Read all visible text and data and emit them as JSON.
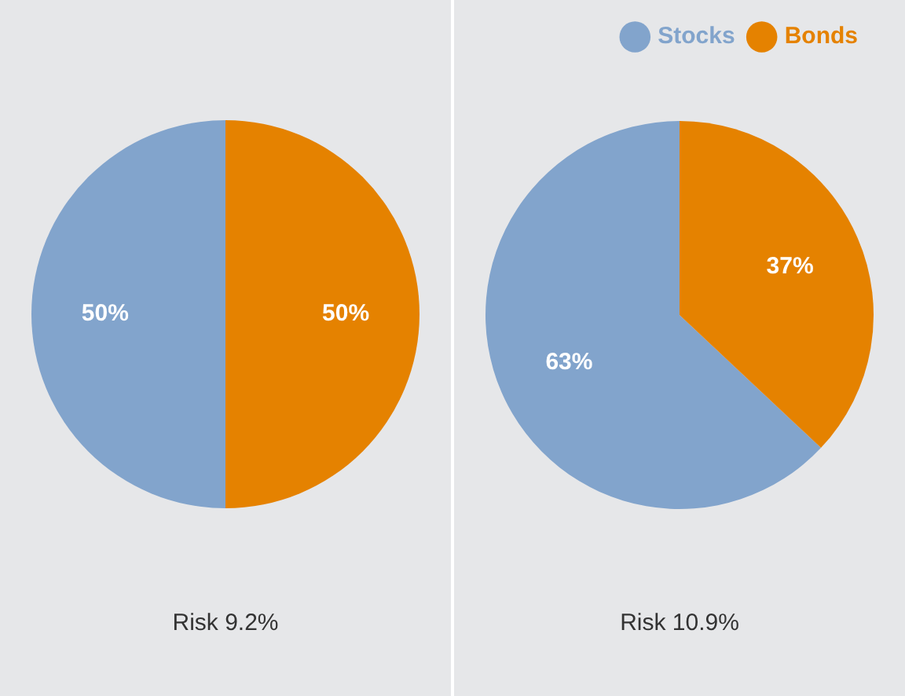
{
  "chart_data": [
    {
      "type": "pie",
      "categories": [
        null,
        null
      ],
      "values": [
        50,
        50
      ],
      "value_labels": [
        "50%",
        "50%"
      ],
      "colors": [
        "#82a4cc",
        "#e58200"
      ],
      "legend": false,
      "annotations": [
        "Risk 9.2%"
      ]
    },
    {
      "type": "pie",
      "categories": [
        "Stocks",
        "Bonds"
      ],
      "values": [
        63,
        37
      ],
      "value_labels": [
        "63%",
        "37%"
      ],
      "colors": [
        "#82a4cc",
        "#e58200"
      ],
      "legend": "top",
      "annotations": [
        "Risk 10.9%"
      ]
    }
  ]
}
